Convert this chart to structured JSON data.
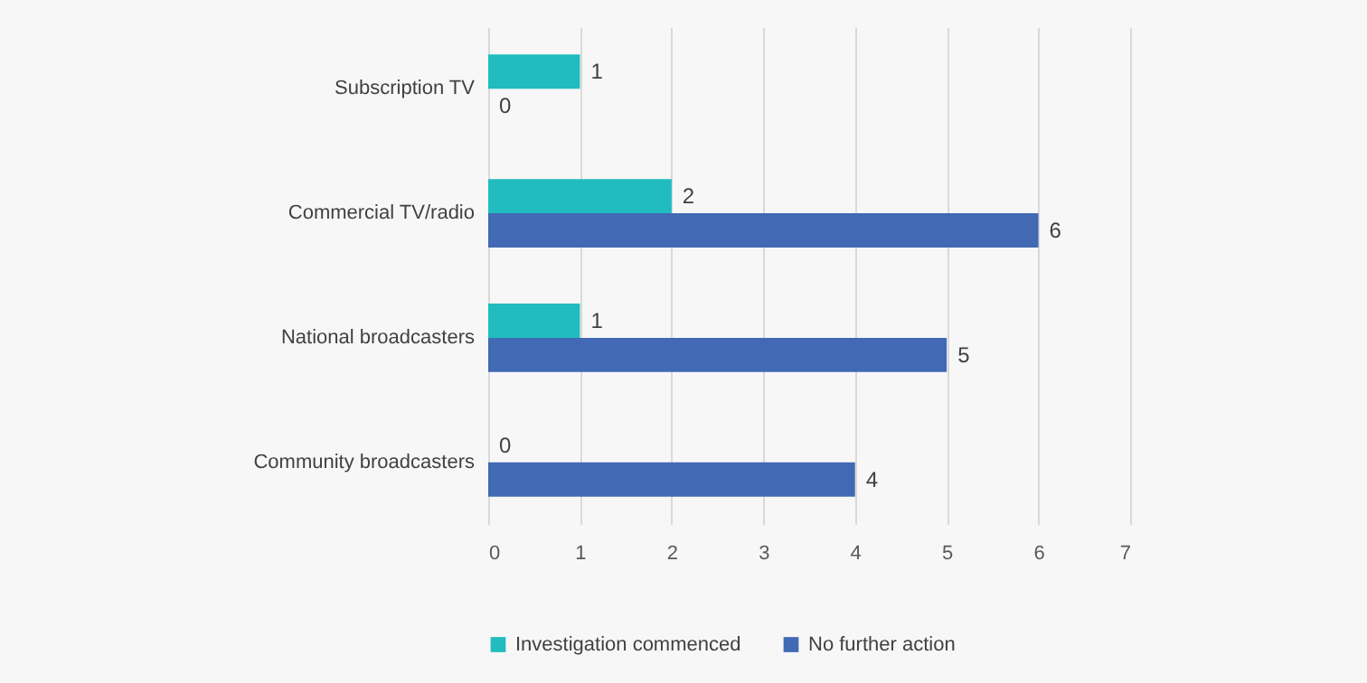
{
  "chart_data": {
    "type": "bar",
    "orientation": "horizontal",
    "categories": [
      "Subscription TV",
      "Commercial TV/radio",
      "National broadcasters",
      "Community broadcasters"
    ],
    "series": [
      {
        "name": "Investigation commenced",
        "color": "#20bcbf",
        "values": [
          1,
          2,
          1,
          0
        ]
      },
      {
        "name": "No further action",
        "color": "#4169b4",
        "values": [
          0,
          6,
          5,
          4
        ]
      }
    ],
    "xlim": [
      0,
      7
    ],
    "xticks": [
      0,
      1,
      2,
      3,
      4,
      5,
      6,
      7
    ],
    "grid": "x",
    "legend": "bottom",
    "data_labels": true
  }
}
